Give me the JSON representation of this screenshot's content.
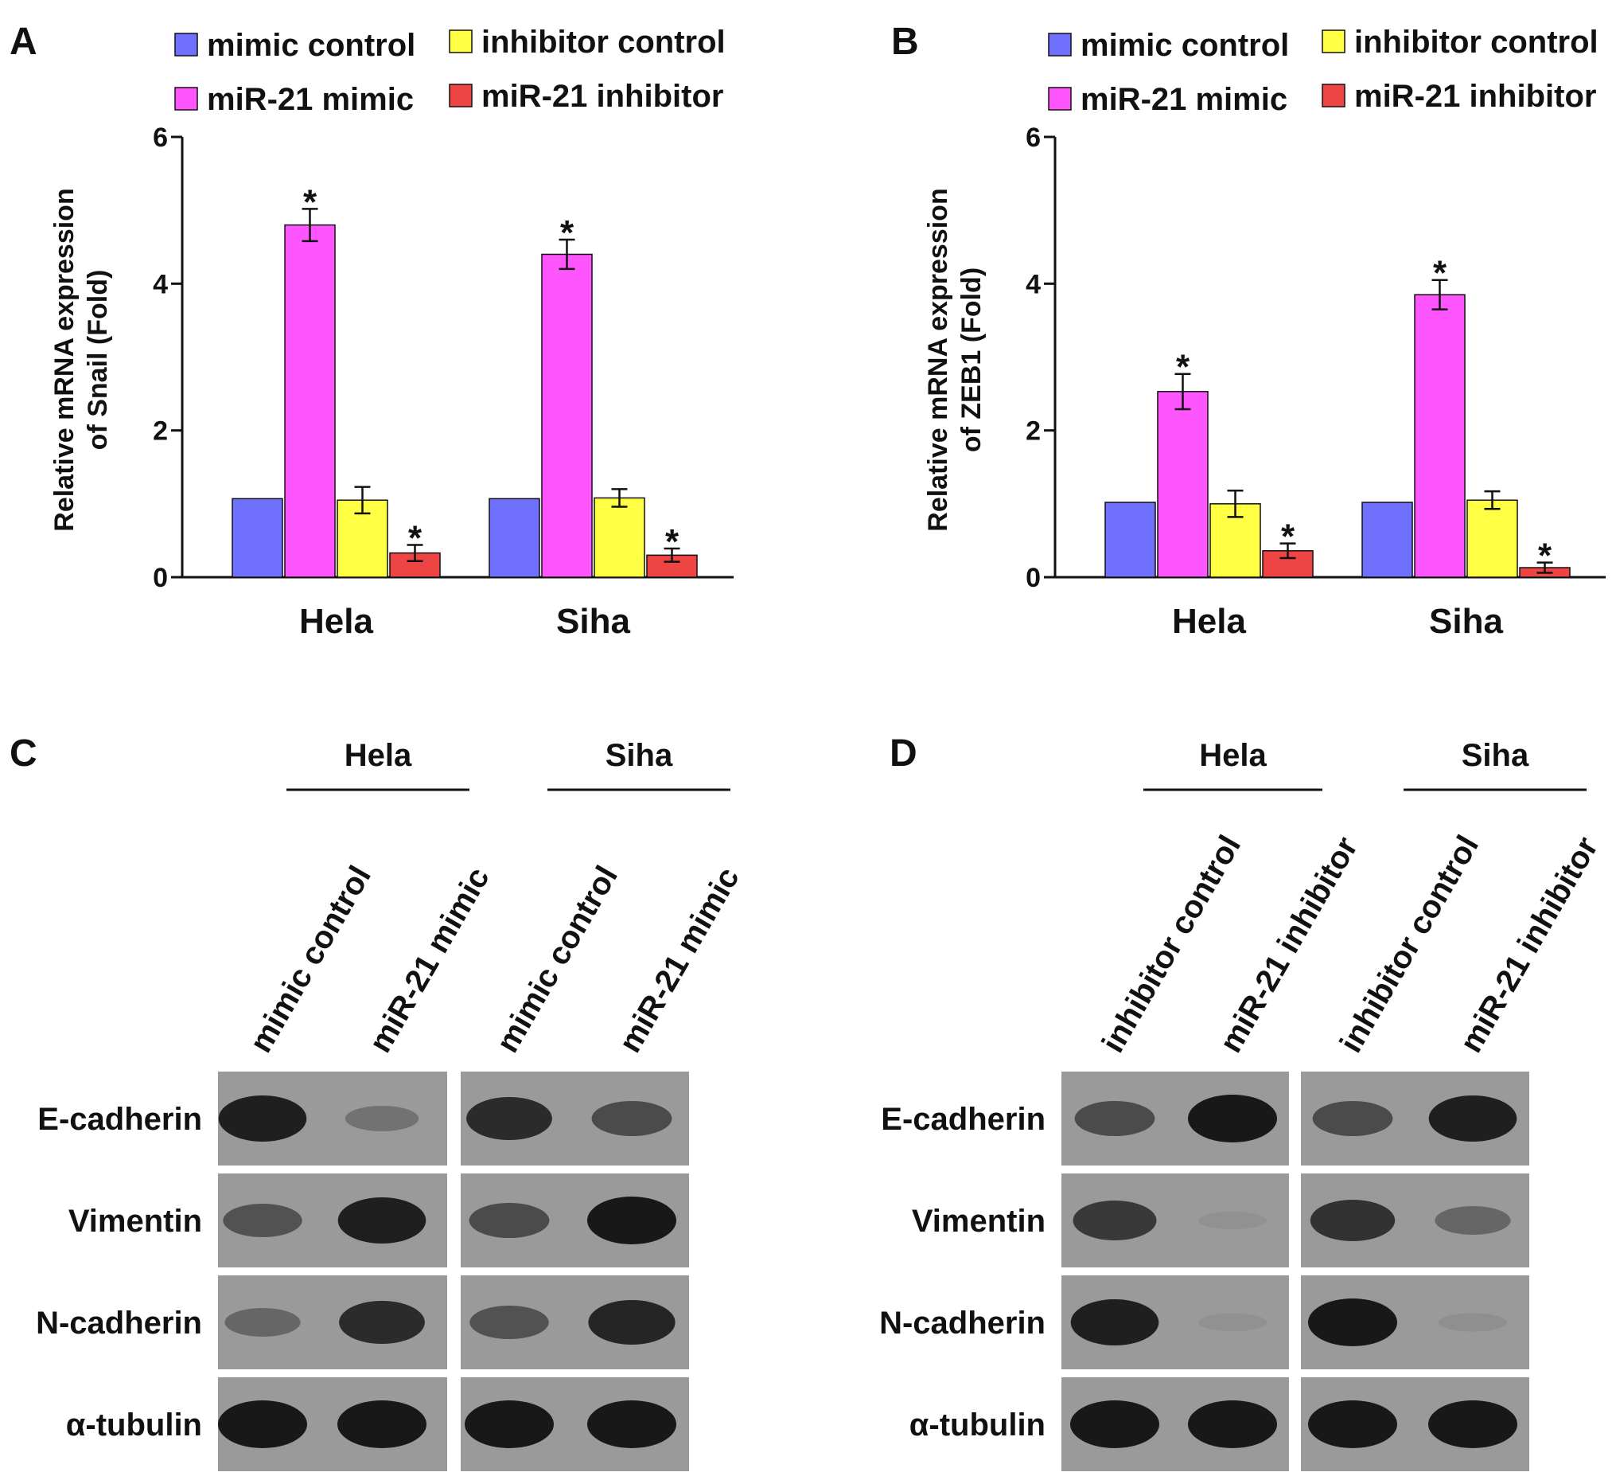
{
  "colors": {
    "series": [
      "#7070ff",
      "#ff55ff",
      "#ffff44",
      "#ee4444"
    ],
    "blot_background": "#9a9a9a",
    "band": "#181818"
  },
  "legend": [
    "mimic control",
    "inhibitor control",
    "miR-21 mimic",
    "miR-21 inhibitor"
  ],
  "chart_data": [
    {
      "panel": "A",
      "type": "bar",
      "ylabel_line1": "Relative mRNA expression",
      "ylabel_line2": "of Snail  (Fold)",
      "ylim": [
        0,
        6
      ],
      "yticks": [
        "0",
        "2",
        "4",
        "6"
      ],
      "categories": [
        "Hela",
        "Siha"
      ],
      "series": [
        {
          "name": "mimic control",
          "values": [
            1.07,
            1.07
          ],
          "errors": [
            0,
            0
          ],
          "sig": [
            "",
            ""
          ]
        },
        {
          "name": "miR-21 mimic",
          "values": [
            4.8,
            4.4
          ],
          "errors": [
            0.22,
            0.2
          ],
          "sig": [
            "*",
            "*"
          ]
        },
        {
          "name": "inhibitor control",
          "values": [
            1.05,
            1.08
          ],
          "errors": [
            0.18,
            0.12
          ],
          "sig": [
            "",
            ""
          ]
        },
        {
          "name": "miR-21 inhibitor",
          "values": [
            0.33,
            0.3
          ],
          "errors": [
            0.11,
            0.09
          ],
          "sig": [
            "*",
            "*"
          ]
        }
      ]
    },
    {
      "panel": "B",
      "type": "bar",
      "ylabel_line1": "Relative mRNA expression",
      "ylabel_line2": "of ZEB1 (Fold)",
      "ylim": [
        0,
        6
      ],
      "yticks": [
        "0",
        "2",
        "4",
        "6"
      ],
      "categories": [
        "Hela",
        "Siha"
      ],
      "series": [
        {
          "name": "mimic control",
          "values": [
            1.02,
            1.02
          ],
          "errors": [
            0,
            0
          ],
          "sig": [
            "",
            ""
          ]
        },
        {
          "name": "miR-21 mimic",
          "values": [
            2.53,
            3.85
          ],
          "errors": [
            0.24,
            0.2
          ],
          "sig": [
            "*",
            "*"
          ]
        },
        {
          "name": "inhibitor control",
          "values": [
            1.0,
            1.05
          ],
          "errors": [
            0.18,
            0.12
          ],
          "sig": [
            "",
            ""
          ]
        },
        {
          "name": "miR-21 inhibitor",
          "values": [
            0.36,
            0.13
          ],
          "errors": [
            0.1,
            0.07
          ],
          "sig": [
            "*",
            "*"
          ]
        }
      ]
    }
  ],
  "blots": [
    {
      "panel": "C",
      "groups": [
        "Hela",
        "Siha"
      ],
      "lanes": [
        "mimic control",
        "miR-21 mimic",
        "mimic control",
        "miR-21 mimic"
      ],
      "proteins": [
        "E-cadherin",
        "Vimentin",
        "N-cadherin",
        "α-tubulin"
      ],
      "intensity": [
        [
          0.95,
          0.3,
          0.85,
          0.6
        ],
        [
          0.55,
          0.95,
          0.6,
          1.0
        ],
        [
          0.4,
          0.85,
          0.55,
          0.9
        ],
        [
          1.0,
          1.0,
          1.0,
          1.0
        ]
      ]
    },
    {
      "panel": "D",
      "groups": [
        "Hela",
        "Siha"
      ],
      "lanes": [
        "inhibitor control",
        "miR-21 inhibitor",
        "inhibitor control",
        "miR-21 inhibitor"
      ],
      "proteins": [
        "E-cadherin",
        "Vimentin",
        "N-cadherin",
        "α-tubulin"
      ],
      "intensity": [
        [
          0.6,
          1.0,
          0.6,
          0.95
        ],
        [
          0.75,
          0.06,
          0.8,
          0.4
        ],
        [
          0.95,
          0.07,
          1.0,
          0.08
        ],
        [
          1.0,
          1.0,
          1.0,
          1.0
        ]
      ]
    }
  ]
}
